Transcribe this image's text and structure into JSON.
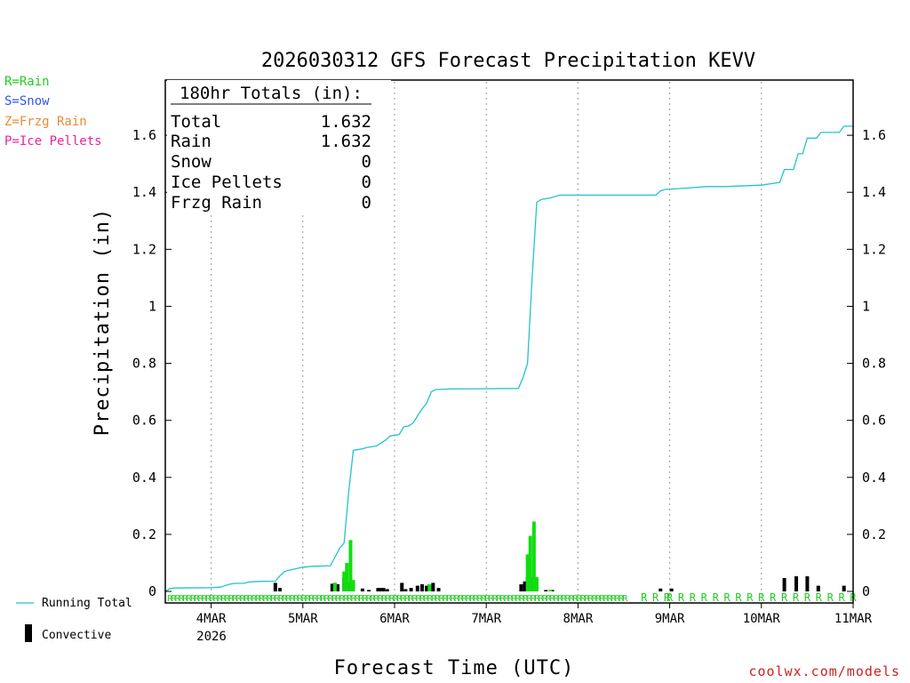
{
  "chart_data": {
    "type": "bar",
    "title": "2026030312 GFS Forecast Precipitation KEVV",
    "ylabel": "Precipitation (in)",
    "xlabel": "Forecast Time (UTC)",
    "ylim": [
      0,
      1.8
    ],
    "yticks": [
      0,
      0.2,
      0.4,
      0.6,
      0.8,
      1,
      1.2,
      1.4,
      1.6
    ],
    "ytick_labels": [
      "0",
      "0.2",
      "0.4",
      "0.6",
      "0.8",
      "1",
      "1.2",
      "1.4",
      "1.6"
    ],
    "xlim": [
      3.5,
      11.0
    ],
    "xticks": [
      {
        "value": 4,
        "label": "4MAR"
      },
      {
        "value": 5,
        "label": "5MAR"
      },
      {
        "value": 6,
        "label": "6MAR"
      },
      {
        "value": 7,
        "label": "7MAR"
      },
      {
        "value": 8,
        "label": "8MAR"
      },
      {
        "value": 9,
        "label": "9MAR"
      },
      {
        "value": 10,
        "label": "10MAR"
      },
      {
        "value": 11,
        "label": "11MAR"
      }
    ],
    "year_label": "2026",
    "precip_type_legend": [
      {
        "code": "R=Rain",
        "color": "#22cc22"
      },
      {
        "code": "S=Snow",
        "color": "#3355ee"
      },
      {
        "code": "Z=Frzg Rain",
        "color": "#ee8833"
      },
      {
        "code": "P=Ice Pellets",
        "color": "#ee2299"
      }
    ],
    "totals_box": {
      "header": "180hr Totals (in):",
      "rows": [
        {
          "label": "Total",
          "value": "1.632"
        },
        {
          "label": "Rain",
          "value": "1.632"
        },
        {
          "label": "Snow",
          "value": "0"
        },
        {
          "label": "Ice Pellets",
          "value": "0"
        },
        {
          "label": "Frzg Rain",
          "value": "0"
        }
      ]
    },
    "series_legend": {
      "running_total": "Running Total",
      "convective": "Convective"
    },
    "running_total": [
      [
        3.5,
        0.0
      ],
      [
        3.55,
        0.01
      ],
      [
        3.6,
        0.012
      ],
      [
        4.0,
        0.013
      ],
      [
        4.1,
        0.015
      ],
      [
        4.2,
        0.025
      ],
      [
        4.25,
        0.028
      ],
      [
        4.35,
        0.028
      ],
      [
        4.4,
        0.032
      ],
      [
        4.5,
        0.035
      ],
      [
        4.7,
        0.036
      ],
      [
        4.75,
        0.055
      ],
      [
        4.8,
        0.07
      ],
      [
        4.9,
        0.078
      ],
      [
        5.0,
        0.085
      ],
      [
        5.1,
        0.088
      ],
      [
        5.3,
        0.09
      ],
      [
        5.35,
        0.12
      ],
      [
        5.4,
        0.15
      ],
      [
        5.45,
        0.17
      ],
      [
        5.5,
        0.35
      ],
      [
        5.55,
        0.495
      ],
      [
        5.65,
        0.5
      ],
      [
        5.7,
        0.505
      ],
      [
        5.8,
        0.51
      ],
      [
        5.85,
        0.52
      ],
      [
        5.9,
        0.53
      ],
      [
        5.95,
        0.545
      ],
      [
        6.05,
        0.55
      ],
      [
        6.1,
        0.578
      ],
      [
        6.15,
        0.58
      ],
      [
        6.2,
        0.59
      ],
      [
        6.3,
        0.64
      ],
      [
        6.35,
        0.66
      ],
      [
        6.4,
        0.7
      ],
      [
        6.45,
        0.708
      ],
      [
        6.6,
        0.71
      ],
      [
        7.35,
        0.712
      ],
      [
        7.4,
        0.75
      ],
      [
        7.45,
        0.8
      ],
      [
        7.5,
        1.1
      ],
      [
        7.55,
        1.365
      ],
      [
        7.6,
        1.375
      ],
      [
        7.7,
        1.38
      ],
      [
        7.8,
        1.39
      ],
      [
        8.0,
        1.39
      ],
      [
        8.85,
        1.39
      ],
      [
        8.9,
        1.405
      ],
      [
        8.95,
        1.41
      ],
      [
        9.2,
        1.415
      ],
      [
        9.4,
        1.42
      ],
      [
        9.6,
        1.42
      ],
      [
        10.0,
        1.425
      ],
      [
        10.1,
        1.43
      ],
      [
        10.2,
        1.435
      ],
      [
        10.25,
        1.48
      ],
      [
        10.35,
        1.48
      ],
      [
        10.4,
        1.535
      ],
      [
        10.45,
        1.535
      ],
      [
        10.5,
        1.59
      ],
      [
        10.6,
        1.59
      ],
      [
        10.65,
        1.61
      ],
      [
        10.85,
        1.61
      ],
      [
        10.9,
        1.632
      ],
      [
        11.0,
        1.632
      ]
    ],
    "convective_bars": [
      {
        "x": 4.7,
        "value": 0.03
      },
      {
        "x": 4.75,
        "value": 0.012
      },
      {
        "x": 5.32,
        "value": 0.027
      },
      {
        "x": 5.35,
        "value": 0.03
      },
      {
        "x": 5.38,
        "value": 0.025
      },
      {
        "x": 5.45,
        "value": 0.05
      },
      {
        "x": 5.48,
        "value": 0.03
      },
      {
        "x": 5.52,
        "value": 0.02
      },
      {
        "x": 5.65,
        "value": 0.01
      },
      {
        "x": 5.72,
        "value": 0.005
      },
      {
        "x": 5.82,
        "value": 0.012
      },
      {
        "x": 5.85,
        "value": 0.012
      },
      {
        "x": 5.88,
        "value": 0.012
      },
      {
        "x": 5.92,
        "value": 0.008
      },
      {
        "x": 6.08,
        "value": 0.03
      },
      {
        "x": 6.12,
        "value": 0.008
      },
      {
        "x": 6.18,
        "value": 0.012
      },
      {
        "x": 6.25,
        "value": 0.02
      },
      {
        "x": 6.3,
        "value": 0.025
      },
      {
        "x": 6.35,
        "value": 0.02
      },
      {
        "x": 6.38,
        "value": 0.025
      },
      {
        "x": 6.42,
        "value": 0.03
      },
      {
        "x": 6.48,
        "value": 0.012
      },
      {
        "x": 7.38,
        "value": 0.025
      },
      {
        "x": 7.42,
        "value": 0.035
      },
      {
        "x": 7.45,
        "value": 0.05
      },
      {
        "x": 7.48,
        "value": 0.05
      },
      {
        "x": 7.52,
        "value": 0.05
      },
      {
        "x": 7.55,
        "value": 0.03
      },
      {
        "x": 7.65,
        "value": 0.005
      },
      {
        "x": 7.72,
        "value": 0.005
      },
      {
        "x": 8.9,
        "value": 0.01
      },
      {
        "x": 9.02,
        "value": 0.01
      },
      {
        "x": 10.25,
        "value": 0.047
      },
      {
        "x": 10.38,
        "value": 0.053
      },
      {
        "x": 10.5,
        "value": 0.053
      },
      {
        "x": 10.62,
        "value": 0.02
      },
      {
        "x": 10.9,
        "value": 0.02
      }
    ],
    "rain_bars": [
      {
        "x": 5.35,
        "value": 0.03
      },
      {
        "x": 5.45,
        "value": 0.07
      },
      {
        "x": 5.48,
        "value": 0.1
      },
      {
        "x": 5.52,
        "value": 0.18
      },
      {
        "x": 5.55,
        "value": 0.04
      },
      {
        "x": 6.38,
        "value": 0.025
      },
      {
        "x": 7.45,
        "value": 0.13
      },
      {
        "x": 7.48,
        "value": 0.195
      },
      {
        "x": 7.52,
        "value": 0.245
      },
      {
        "x": 7.55,
        "value": 0.05
      },
      {
        "x": 7.7,
        "value": 0.006
      }
    ],
    "precip_type_marker_text": "R",
    "precip_type_marker_ranges": [
      {
        "from": 3.55,
        "to": 8.52,
        "step": 0.0417
      },
      {
        "from": 8.72,
        "to": 9.0,
        "step": 0.125
      },
      {
        "from": 9.0,
        "to": 11.0,
        "step": 0.125
      }
    ],
    "credit": "coolwx.com/models"
  }
}
